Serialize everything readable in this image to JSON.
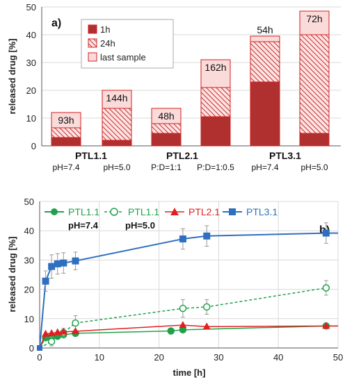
{
  "chart_data": [
    {
      "panel": "a)",
      "type": "bar",
      "ylabel": "released drug [%]",
      "ylim": [
        0,
        50
      ],
      "yticks": [
        "0",
        "10",
        "20",
        "30",
        "40",
        "50"
      ],
      "grid": true,
      "legend_position": "top-left",
      "legend": [
        "1h",
        "24h",
        "last sample"
      ],
      "groups": [
        {
          "label": "PTL1.1",
          "bars": [
            {
              "sub": "pH=7.4",
              "v1h": 3.0,
              "v24h": 6.5,
              "last": 12.0,
              "last_label": "93h"
            },
            {
              "sub": "pH=5.0",
              "v1h": 2.0,
              "v24h": 13.5,
              "last": 20.0,
              "last_label": "144h"
            }
          ]
        },
        {
          "label": "PTL2.1",
          "bars": [
            {
              "sub": "P:D=1:1",
              "v1h": 4.5,
              "v24h": 8.0,
              "last": 13.5,
              "last_label": "48h"
            },
            {
              "sub": "P:D=1:0.5",
              "v1h": 10.5,
              "v24h": 21.0,
              "last": 31.0,
              "last_label": "162h"
            }
          ]
        },
        {
          "label": "PTL3.1",
          "bars": [
            {
              "sub": "pH=7.4",
              "v1h": 23.0,
              "v24h": 37.5,
              "last": 39.5,
              "last_label": "54h"
            },
            {
              "sub": "pH=5.0",
              "v1h": 4.5,
              "v24h": 40.0,
              "last": 48.5,
              "last_label": "72h"
            }
          ]
        }
      ],
      "colors": {
        "solid": "#b03030",
        "hatch_bg": "#fde0e0",
        "hatch_line": "#c02a2a",
        "last": "#fbdada",
        "edge": "#d02020"
      }
    },
    {
      "panel": "b)",
      "type": "line",
      "xlabel": "time [h]",
      "ylabel": "released drug [%]",
      "xlim": [
        0,
        50
      ],
      "ylim": [
        0,
        50
      ],
      "xticks": [
        "0",
        "10",
        "20",
        "30",
        "40",
        "50"
      ],
      "yticks": [
        "0",
        "10",
        "20",
        "30",
        "40",
        "50"
      ],
      "grid": true,
      "legend_position": "top",
      "series": [
        {
          "name": "PTL1.1",
          "sub": "pH=7.4",
          "color": "#1fa14b",
          "marker": "circle",
          "fill": true,
          "dashed": false,
          "x": [
            0,
            1,
            2,
            3,
            4,
            6,
            22,
            24,
            48
          ],
          "y": [
            0,
            3.5,
            3.8,
            4.0,
            4.5,
            5.0,
            5.8,
            6.2,
            7.5
          ],
          "err": [
            0,
            0,
            0,
            0,
            0,
            0,
            0,
            0,
            0
          ]
        },
        {
          "name": "PTL1.1",
          "sub": "pH=5.0",
          "color": "#1fa14b",
          "marker": "circle",
          "fill": false,
          "dashed": true,
          "x": [
            0,
            2,
            4,
            6,
            24,
            28,
            48
          ],
          "y": [
            0,
            2.2,
            5.2,
            8.5,
            13.5,
            14.0,
            20.5
          ],
          "err": [
            0,
            1.5,
            1.5,
            2.5,
            3,
            2.5,
            2.5
          ]
        },
        {
          "name": "PTL2.1",
          "sub": "",
          "color": "#e02020",
          "marker": "triangle",
          "fill": true,
          "dashed": false,
          "x": [
            0,
            1,
            2,
            3,
            4,
            6,
            24,
            28,
            48
          ],
          "y": [
            0,
            4.8,
            5.0,
            5.3,
            5.5,
            5.7,
            7.8,
            7.3,
            7.5
          ],
          "err": [
            0,
            0,
            0,
            0,
            0,
            0,
            0,
            0,
            0
          ]
        },
        {
          "name": "PTL3.1",
          "sub": "",
          "color": "#2e6fc0",
          "marker": "square",
          "fill": true,
          "dashed": false,
          "x": [
            0,
            1,
            2,
            3,
            4,
            6,
            24,
            28,
            48
          ],
          "y": [
            0,
            22.8,
            27.8,
            28.7,
            29.0,
            29.7,
            37.2,
            38.2,
            39.2
          ],
          "err": [
            0,
            3.5,
            4,
            3.5,
            3.5,
            3,
            3.5,
            3.5,
            3.5
          ]
        }
      ],
      "extend_to_x": 50
    }
  ]
}
